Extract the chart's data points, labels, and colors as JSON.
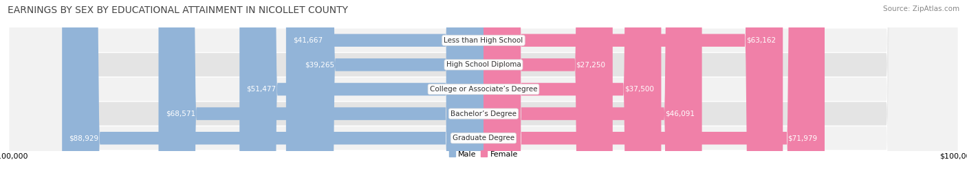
{
  "title": "EARNINGS BY SEX BY EDUCATIONAL ATTAINMENT IN NICOLLET COUNTY",
  "source": "Source: ZipAtlas.com",
  "categories": [
    "Less than High School",
    "High School Diploma",
    "College or Associate’s Degree",
    "Bachelor’s Degree",
    "Graduate Degree"
  ],
  "male_values": [
    41667,
    39265,
    51477,
    68571,
    88929
  ],
  "female_values": [
    63162,
    27250,
    37500,
    46091,
    71979
  ],
  "male_color": "#92b4d8",
  "female_color": "#f080a8",
  "row_bg_light": "#f2f2f2",
  "row_bg_dark": "#e4e4e4",
  "max_value": 100000,
  "label_color_inside": "#ffffff",
  "label_color_outside": "#555555",
  "title_fontsize": 10,
  "source_fontsize": 7.5,
  "bar_label_fontsize": 7.5,
  "category_fontsize": 7.5,
  "axis_label_fontsize": 8,
  "figsize": [
    14.06,
    2.68
  ],
  "dpi": 100
}
